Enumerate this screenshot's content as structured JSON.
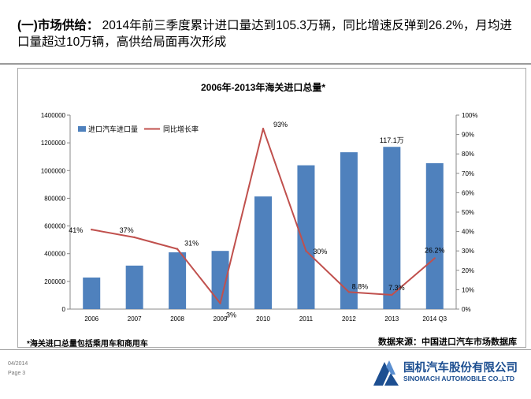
{
  "header": {
    "prefix": "(一)市场供给：",
    "text": "2014年前三季度累计进口量达到105.3万辆，同比增速反弹到26.2%，月均进口量超过10万辆，高供给局面再次形成"
  },
  "footer": {
    "note": "*海关进口总量包括乘用车和商用车",
    "source": "数据来源：中国进口汽车市场数据库",
    "date": "04/2014",
    "page": "Page 3",
    "logo_cn": "国机汽车股份有限公司",
    "logo_en": "SINOMACH AUTOMOBILE CO.,LTD"
  },
  "colors": {
    "bar": "#4f81bd",
    "line": "#c0504d",
    "brand": "#1d4f91"
  },
  "chart_data": {
    "type": "bar",
    "title": "2006年-2013年海关进口总量*",
    "categories": [
      "2006",
      "2007",
      "2008",
      "2009",
      "2010",
      "2011",
      "2012",
      "2013",
      "2014 Q3"
    ],
    "series": [
      {
        "name": "进口汽车进口量",
        "type": "bar",
        "axis": "left",
        "values": [
          228000,
          314000,
          410000,
          420000,
          813000,
          1038000,
          1132000,
          1171000,
          1053000
        ]
      },
      {
        "name": "同比增长率",
        "type": "line",
        "axis": "right",
        "values": [
          41,
          37,
          31,
          3,
          93,
          30,
          8.8,
          7.3,
          26.2
        ]
      }
    ],
    "left_axis": {
      "min": 0,
      "max": 1400000,
      "ticks": [
        0,
        200000,
        400000,
        600000,
        800000,
        1000000,
        1200000,
        1400000
      ]
    },
    "right_axis": {
      "min": 0,
      "max": 100,
      "ticks": [
        "0%",
        "10%",
        "20%",
        "30%",
        "40%",
        "50%",
        "60%",
        "70%",
        "80%",
        "90%",
        "100%"
      ]
    },
    "bar_annotation": "117.1万",
    "line_labels": [
      "41%",
      "37%",
      "31%",
      "3%",
      "93%",
      "30%",
      "8.8%",
      "7.3%",
      "26.2%"
    ],
    "legend_position": "top-left",
    "grid": false
  }
}
